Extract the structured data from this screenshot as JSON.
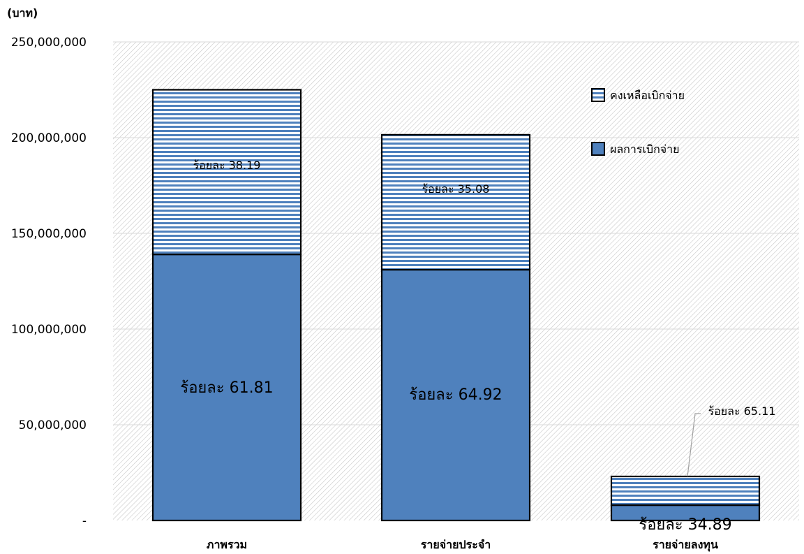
{
  "chart_data": {
    "type": "bar",
    "stacked": true,
    "unit_label": "(บาท)",
    "categories": [
      "ภาพรวม",
      "รายจ่ายประจำ",
      "รายจ่ายลงทุน"
    ],
    "ylim": [
      0,
      250000000
    ],
    "yticks": [
      0,
      50000000,
      100000000,
      150000000,
      200000000,
      250000000
    ],
    "ytick_labels": [
      "-",
      "50,000,000",
      "100,000,000",
      "150,000,000",
      "200,000,000",
      "250,000,000"
    ],
    "grid": true,
    "legend_position": "top-right",
    "series": [
      {
        "name": "ผลการเบิกจ่าย",
        "color": "#4f81bd",
        "values": [
          139000000,
          131000000,
          8000000
        ],
        "labels": [
          "ร้อยละ 61.81",
          "ร้อยละ 64.92",
          "ร้อยละ 34.89"
        ]
      },
      {
        "name": "คงเหลือเบิกจ่าย",
        "color": "#4f81bd",
        "pattern": "horizontal-stripes",
        "values": [
          86000000,
          70500000,
          15000000
        ],
        "labels": [
          "ร้อยละ 38.19",
          "ร้อยละ 35.08",
          "ร้อยละ 65.11"
        ]
      }
    ]
  }
}
